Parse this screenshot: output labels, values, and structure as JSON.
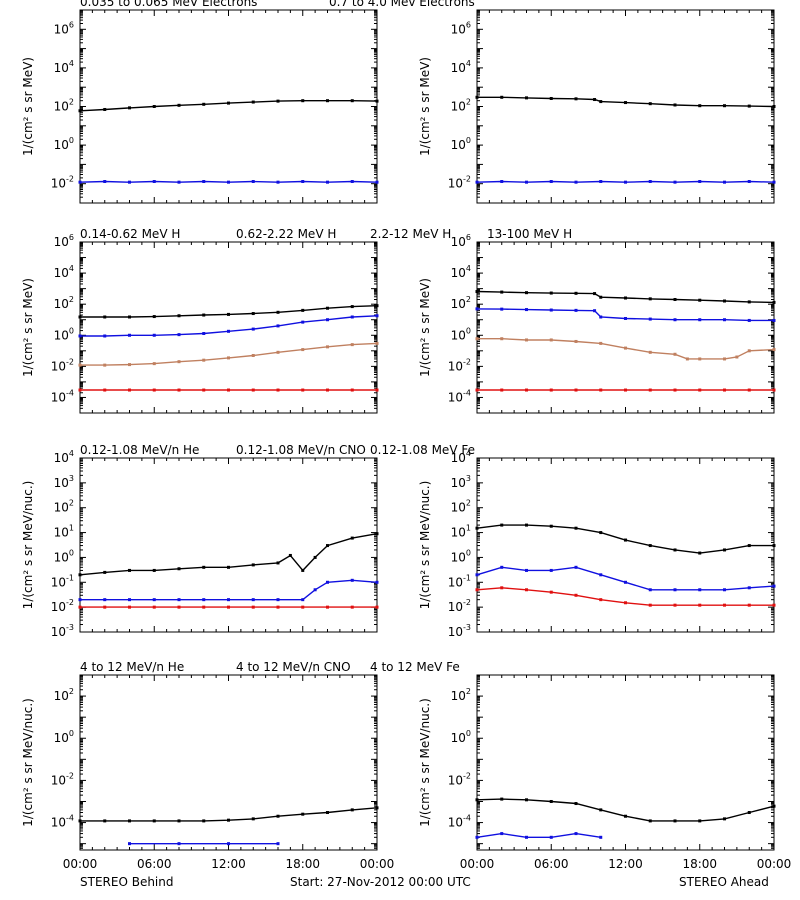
{
  "footer": {
    "left_label": "STEREO Behind",
    "center_label": "Start: 27-Nov-2012 00:00 UTC",
    "right_label": "STEREO Ahead",
    "time_ticks": [
      "00:00",
      "06:00",
      "12:00",
      "18:00",
      "00:00"
    ]
  },
  "colors": {
    "black": "#000000",
    "blue": "#1010e0",
    "tan": "#c08060",
    "red": "#e01010"
  },
  "chart_data": [
    {
      "type": "scatter",
      "row": 0,
      "side": "behind",
      "scale": "log",
      "ylabel": "1/(cm² s sr MeV)",
      "ylim": [
        0.001,
        10000000
      ],
      "ytick_exps": [
        -2,
        0,
        2,
        4,
        6
      ],
      "legend": [
        {
          "label": "0.035 to 0.065 MeV Electrons",
          "color": "#000000"
        },
        {
          "label": "0.7 to 4.0 Mev Electrons",
          "color": "#1010e0"
        }
      ],
      "series": [
        {
          "color": "#000000",
          "x": [
            0,
            2,
            4,
            6,
            8,
            10,
            12,
            14,
            16,
            18,
            20,
            22,
            24
          ],
          "y": [
            60,
            70,
            85,
            100,
            115,
            130,
            150,
            170,
            190,
            200,
            200,
            200,
            190
          ]
        },
        {
          "color": "#1010e0",
          "x": [
            0,
            2,
            4,
            6,
            8,
            10,
            12,
            14,
            16,
            18,
            20,
            22,
            24
          ],
          "y": [
            0.012,
            0.013,
            0.012,
            0.013,
            0.012,
            0.013,
            0.012,
            0.013,
            0.012,
            0.013,
            0.012,
            0.013,
            0.012
          ]
        }
      ]
    },
    {
      "type": "scatter",
      "row": 0,
      "side": "ahead",
      "scale": "log",
      "ylabel": "1/(cm² s sr MeV)",
      "ylim": [
        0.001,
        10000000
      ],
      "ytick_exps": [
        -2,
        0,
        2,
        4,
        6
      ],
      "legend": [],
      "series": [
        {
          "color": "#000000",
          "x": [
            0,
            2,
            4,
            6,
            8,
            9.5,
            10,
            12,
            14,
            16,
            18,
            20,
            22,
            24
          ],
          "y": [
            300,
            300,
            280,
            260,
            250,
            230,
            180,
            160,
            140,
            120,
            110,
            110,
            105,
            100
          ]
        },
        {
          "color": "#1010e0",
          "x": [
            0,
            2,
            4,
            6,
            8,
            10,
            12,
            14,
            16,
            18,
            20,
            22,
            24
          ],
          "y": [
            0.012,
            0.013,
            0.012,
            0.013,
            0.012,
            0.013,
            0.012,
            0.013,
            0.012,
            0.013,
            0.012,
            0.013,
            0.012
          ]
        }
      ]
    },
    {
      "type": "scatter",
      "row": 1,
      "side": "behind",
      "scale": "log",
      "ylabel": "1/(cm² s sr MeV)",
      "ylim": [
        1e-05,
        1000000
      ],
      "ytick_exps": [
        -4,
        -2,
        0,
        2,
        4,
        6
      ],
      "legend": [
        {
          "label": "0.14-0.62 MeV H",
          "color": "#000000"
        },
        {
          "label": "0.62-2.22 MeV H",
          "color": "#1010e0"
        },
        {
          "label": "2.2-12 MeV H",
          "color": "#c08060"
        },
        {
          "label": "13-100 MeV H",
          "color": "#e01010"
        }
      ],
      "series": [
        {
          "color": "#000000",
          "x": [
            0,
            2,
            4,
            6,
            8,
            10,
            12,
            14,
            16,
            18,
            20,
            22,
            24
          ],
          "y": [
            15,
            15,
            15,
            16,
            18,
            20,
            22,
            25,
            30,
            40,
            55,
            70,
            80
          ]
        },
        {
          "color": "#1010e0",
          "x": [
            0,
            2,
            4,
            6,
            8,
            10,
            12,
            14,
            16,
            18,
            20,
            22,
            24
          ],
          "y": [
            0.9,
            0.9,
            1,
            1,
            1.1,
            1.3,
            1.8,
            2.5,
            4,
            7,
            10,
            15,
            18
          ]
        },
        {
          "color": "#c08060",
          "x": [
            0,
            2,
            4,
            6,
            8,
            10,
            12,
            14,
            16,
            18,
            20,
            22,
            24
          ],
          "y": [
            0.012,
            0.012,
            0.013,
            0.015,
            0.02,
            0.025,
            0.035,
            0.05,
            0.08,
            0.12,
            0.18,
            0.25,
            0.3
          ]
        },
        {
          "color": "#e01010",
          "x": [
            0,
            2,
            4,
            6,
            8,
            10,
            12,
            14,
            16,
            18,
            20,
            22,
            24
          ],
          "y": [
            0.0003,
            0.0003,
            0.0003,
            0.0003,
            0.0003,
            0.0003,
            0.0003,
            0.0003,
            0.0003,
            0.0003,
            0.0003,
            0.0003,
            0.0003
          ]
        }
      ]
    },
    {
      "type": "scatter",
      "row": 1,
      "side": "ahead",
      "scale": "log",
      "ylabel": "1/(cm² s sr MeV)",
      "ylim": [
        1e-05,
        1000000
      ],
      "ytick_exps": [
        -4,
        -2,
        0,
        2,
        4,
        6
      ],
      "legend": [],
      "series": [
        {
          "color": "#000000",
          "x": [
            0,
            2,
            4,
            6,
            8,
            9.5,
            10,
            12,
            14,
            16,
            18,
            20,
            22,
            24
          ],
          "y": [
            650,
            600,
            550,
            520,
            500,
            480,
            280,
            250,
            220,
            200,
            180,
            160,
            140,
            130
          ]
        },
        {
          "color": "#1010e0",
          "x": [
            0,
            2,
            4,
            6,
            8,
            9.5,
            10,
            12,
            14,
            16,
            18,
            20,
            22,
            24
          ],
          "y": [
            50,
            48,
            45,
            42,
            40,
            38,
            15,
            12,
            11,
            10,
            10,
            10,
            9,
            9
          ]
        },
        {
          "color": "#c08060",
          "x": [
            0,
            2,
            4,
            6,
            8,
            10,
            12,
            14,
            16,
            17,
            18,
            20,
            21,
            22,
            24
          ],
          "y": [
            0.6,
            0.6,
            0.5,
            0.5,
            0.4,
            0.3,
            0.15,
            0.08,
            0.06,
            0.03,
            0.03,
            0.03,
            0.04,
            0.1,
            0.12
          ]
        },
        {
          "color": "#e01010",
          "x": [
            0,
            2,
            4,
            6,
            8,
            10,
            12,
            14,
            16,
            18,
            20,
            22,
            24
          ],
          "y": [
            0.0003,
            0.0003,
            0.0003,
            0.0003,
            0.0003,
            0.0003,
            0.0003,
            0.0003,
            0.0003,
            0.0003,
            0.0003,
            0.0003,
            0.0003
          ]
        }
      ]
    },
    {
      "type": "scatter",
      "row": 2,
      "side": "behind",
      "scale": "log",
      "ylabel": "1/(cm² s sr MeV/nuc.)",
      "ylim": [
        0.001,
        10000
      ],
      "ytick_exps": [
        -3,
        -2,
        -1,
        0,
        1,
        2,
        3,
        4
      ],
      "legend": [
        {
          "label": "0.12-1.08 MeV/n He",
          "color": "#000000"
        },
        {
          "label": "0.12-1.08 MeV/n CNO",
          "color": "#1010e0"
        },
        {
          "label": "0.12-1.08 MeV Fe",
          "color": "#e01010"
        }
      ],
      "series": [
        {
          "color": "#000000",
          "x": [
            0,
            2,
            4,
            6,
            8,
            10,
            12,
            14,
            16,
            17,
            18,
            19,
            20,
            22,
            24
          ],
          "y": [
            0.2,
            0.25,
            0.3,
            0.3,
            0.35,
            0.4,
            0.4,
            0.5,
            0.6,
            1.2,
            0.3,
            1.0,
            3,
            6,
            9
          ]
        },
        {
          "color": "#1010e0",
          "x": [
            0,
            2,
            4,
            6,
            8,
            10,
            12,
            14,
            16,
            18,
            19,
            20,
            22,
            24
          ],
          "y": [
            0.02,
            0.02,
            0.02,
            0.02,
            0.02,
            0.02,
            0.02,
            0.02,
            0.02,
            0.02,
            0.05,
            0.1,
            0.12,
            0.1
          ]
        },
        {
          "color": "#e01010",
          "x": [
            0,
            2,
            4,
            6,
            8,
            10,
            12,
            14,
            16,
            18,
            20,
            22,
            24
          ],
          "y": [
            0.01,
            0.01,
            0.01,
            0.01,
            0.01,
            0.01,
            0.01,
            0.01,
            0.01,
            0.01,
            0.01,
            0.01,
            0.01
          ]
        }
      ]
    },
    {
      "type": "scatter",
      "row": 2,
      "side": "ahead",
      "scale": "log",
      "ylabel": "1/(cm² s sr MeV/nuc.)",
      "ylim": [
        0.001,
        10000
      ],
      "ytick_exps": [
        -3,
        -2,
        -1,
        0,
        1,
        2,
        3,
        4
      ],
      "legend": [],
      "series": [
        {
          "color": "#000000",
          "x": [
            0,
            2,
            4,
            6,
            8,
            10,
            12,
            14,
            16,
            18,
            20,
            22,
            24
          ],
          "y": [
            15,
            20,
            20,
            18,
            15,
            10,
            5,
            3,
            2,
            1.5,
            2,
            3,
            3
          ]
        },
        {
          "color": "#1010e0",
          "x": [
            0,
            2,
            4,
            6,
            8,
            10,
            12,
            14,
            16,
            18,
            20,
            22,
            24
          ],
          "y": [
            0.2,
            0.4,
            0.3,
            0.3,
            0.4,
            0.2,
            0.1,
            0.05,
            0.05,
            0.05,
            0.05,
            0.06,
            0.07
          ]
        },
        {
          "color": "#e01010",
          "x": [
            0,
            2,
            4,
            6,
            8,
            10,
            12,
            14,
            16,
            18,
            20,
            22,
            24
          ],
          "y": [
            0.05,
            0.06,
            0.05,
            0.04,
            0.03,
            0.02,
            0.015,
            0.012,
            0.012,
            0.012,
            0.012,
            0.012,
            0.012
          ]
        }
      ]
    },
    {
      "type": "scatter",
      "row": 3,
      "side": "behind",
      "scale": "log",
      "ylabel": "1/(cm² s sr MeV/nuc.)",
      "ylim": [
        5e-06,
        1000
      ],
      "ytick_exps": [
        -4,
        -2,
        0,
        2
      ],
      "legend": [
        {
          "label": "4 to 12 MeV/n He",
          "color": "#000000"
        },
        {
          "label": "4 to 12 MeV/n CNO",
          "color": "#1010e0"
        },
        {
          "label": "4 to 12 MeV Fe",
          "color": "#e01010"
        }
      ],
      "series": [
        {
          "color": "#000000",
          "x": [
            0,
            2,
            4,
            6,
            8,
            10,
            12,
            14,
            16,
            18,
            20,
            22,
            24
          ],
          "y": [
            0.00012,
            0.00012,
            0.00012,
            0.00012,
            0.00012,
            0.00012,
            0.00013,
            0.00015,
            0.0002,
            0.00025,
            0.0003,
            0.0004,
            0.0005
          ]
        },
        {
          "color": "#1010e0",
          "x": [
            4,
            8,
            12,
            16
          ],
          "y": [
            1e-05,
            1e-05,
            1e-05,
            1e-05
          ]
        }
      ]
    },
    {
      "type": "scatter",
      "row": 3,
      "side": "ahead",
      "scale": "log",
      "ylabel": "1/(cm² s sr MeV/nuc.)",
      "ylim": [
        5e-06,
        1000
      ],
      "ytick_exps": [
        -4,
        -2,
        0,
        2
      ],
      "legend": [],
      "series": [
        {
          "color": "#000000",
          "x": [
            0,
            2,
            4,
            6,
            8,
            10,
            12,
            14,
            16,
            18,
            20,
            22,
            24
          ],
          "y": [
            0.0012,
            0.0013,
            0.0012,
            0.001,
            0.0008,
            0.0004,
            0.0002,
            0.00012,
            0.00012,
            0.00012,
            0.00015,
            0.0003,
            0.0006
          ]
        },
        {
          "color": "#1010e0",
          "x": [
            0,
            2,
            4,
            6,
            8,
            10
          ],
          "y": [
            2e-05,
            3e-05,
            2e-05,
            2e-05,
            3e-05,
            2e-05
          ]
        }
      ]
    }
  ]
}
